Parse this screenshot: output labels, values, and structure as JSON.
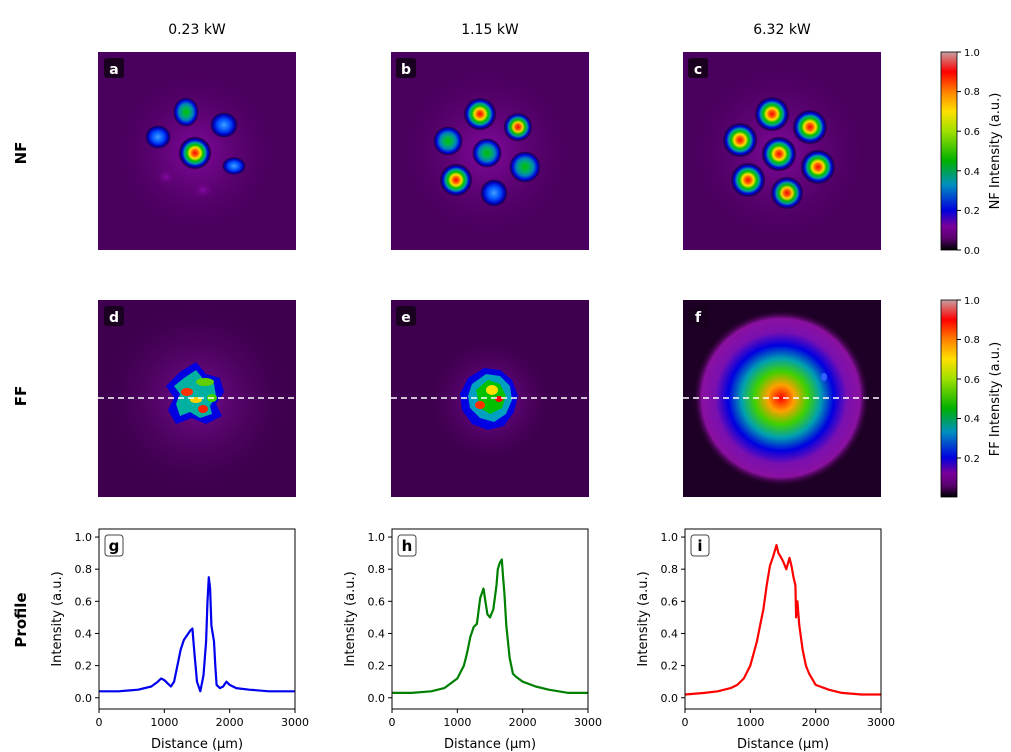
{
  "columns": [
    "0.23 kW",
    "1.15 kW",
    "6.32 kW"
  ],
  "rows": [
    "NF",
    "FF",
    "Profile"
  ],
  "panel_labels": [
    "a",
    "b",
    "c",
    "d",
    "e",
    "f",
    "g",
    "h",
    "i"
  ],
  "colorbars": [
    {
      "label": "NF Intensity (a.u.)",
      "ticks": [
        "0.0",
        "0.2",
        "0.4",
        "0.6",
        "0.8",
        "1.0"
      ]
    },
    {
      "label": "FF Intensity (a.u.)",
      "ticks": [
        "0.2",
        "0.4",
        "0.6",
        "0.8",
        "1.0"
      ]
    }
  ],
  "colormap": [
    "#000000",
    "#5a0070",
    "#7a009a",
    "#0000dd",
    "#0090c0",
    "#00b000",
    "#a0e000",
    "#ffe000",
    "#ff8000",
    "#ff0000",
    "#c80000"
  ],
  "chart_data": {
    "type": "line",
    "xlabel": "Distance (μm)",
    "ylabel": "Intensity (a.u.)",
    "xlim": [
      0,
      3000
    ],
    "ylim": [
      -0.07,
      1.05
    ],
    "xticks": [
      "0",
      "1000",
      "2000",
      "3000"
    ],
    "yticks": [
      "0.0",
      "0.2",
      "0.4",
      "0.6",
      "0.8",
      "1.0"
    ],
    "series": [
      {
        "name": "g",
        "power": "0.23 kW",
        "color": "#0000ee",
        "x": [
          0,
          300,
          600,
          800,
          900,
          950,
          1000,
          1050,
          1100,
          1150,
          1200,
          1250,
          1300,
          1350,
          1400,
          1430,
          1460,
          1500,
          1550,
          1600,
          1640,
          1660,
          1680,
          1700,
          1720,
          1740,
          1760,
          1780,
          1800,
          1850,
          1900,
          1950,
          2000,
          2100,
          2300,
          2600,
          3000
        ],
        "y": [
          0.04,
          0.04,
          0.05,
          0.07,
          0.1,
          0.12,
          0.11,
          0.09,
          0.07,
          0.1,
          0.2,
          0.3,
          0.36,
          0.39,
          0.42,
          0.43,
          0.28,
          0.1,
          0.04,
          0.14,
          0.35,
          0.6,
          0.75,
          0.68,
          0.45,
          0.4,
          0.35,
          0.2,
          0.08,
          0.06,
          0.07,
          0.1,
          0.08,
          0.06,
          0.05,
          0.04,
          0.04
        ]
      },
      {
        "name": "h",
        "power": "1.15 kW",
        "color": "#008000",
        "x": [
          0,
          300,
          600,
          800,
          1000,
          1100,
          1150,
          1200,
          1250,
          1300,
          1350,
          1400,
          1430,
          1460,
          1500,
          1550,
          1600,
          1620,
          1650,
          1680,
          1700,
          1720,
          1750,
          1800,
          1850,
          1900,
          2000,
          2200,
          2400,
          2700,
          3000
        ],
        "y": [
          0.03,
          0.03,
          0.04,
          0.06,
          0.12,
          0.2,
          0.28,
          0.38,
          0.44,
          0.46,
          0.62,
          0.68,
          0.6,
          0.52,
          0.5,
          0.55,
          0.7,
          0.8,
          0.84,
          0.86,
          0.75,
          0.65,
          0.45,
          0.25,
          0.15,
          0.13,
          0.1,
          0.07,
          0.05,
          0.03,
          0.03
        ]
      },
      {
        "name": "i",
        "power": "6.32 kW",
        "color": "#ff0000",
        "x": [
          0,
          300,
          500,
          700,
          800,
          900,
          1000,
          1100,
          1150,
          1200,
          1250,
          1300,
          1350,
          1400,
          1430,
          1460,
          1500,
          1550,
          1600,
          1630,
          1660,
          1690,
          1700,
          1720,
          1750,
          1800,
          1850,
          1900,
          2000,
          2200,
          2400,
          2700,
          3000
        ],
        "y": [
          0.02,
          0.03,
          0.04,
          0.06,
          0.08,
          0.12,
          0.2,
          0.35,
          0.45,
          0.55,
          0.7,
          0.82,
          0.88,
          0.95,
          0.9,
          0.88,
          0.85,
          0.8,
          0.87,
          0.82,
          0.75,
          0.7,
          0.5,
          0.6,
          0.45,
          0.3,
          0.2,
          0.15,
          0.08,
          0.05,
          0.03,
          0.02,
          0.02
        ]
      }
    ]
  }
}
